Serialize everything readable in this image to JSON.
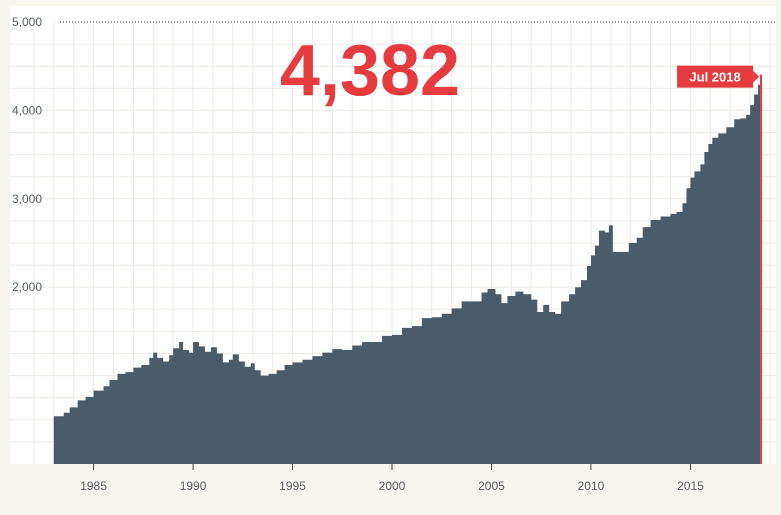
{
  "headline_value": "4,382",
  "colors": {
    "area": "#4a5c69",
    "accent": "#e63b3f",
    "grid": "#ecebe6",
    "plot_background": "#ffffff",
    "page_background": "#f7f5f0",
    "tick_text": "#5a5f63"
  },
  "chart_data": {
    "type": "area",
    "step": true,
    "title": "",
    "xlabel": "",
    "ylabel": "",
    "xlim": [
      1980.8,
      2019.3
    ],
    "ylim": [
      0,
      5000
    ],
    "grid": true,
    "y_ticks": [
      {
        "value": 2000,
        "label": "2,000"
      },
      {
        "value": 3000,
        "label": "3,000"
      },
      {
        "value": 4000,
        "label": "4,000"
      },
      {
        "value": 5000,
        "label": "5,000"
      }
    ],
    "x_ticks": [
      {
        "value": 1985,
        "label": "1985"
      },
      {
        "value": 1990,
        "label": "1990"
      },
      {
        "value": 1995,
        "label": "1995"
      },
      {
        "value": 2000,
        "label": "2000"
      },
      {
        "value": 2005,
        "label": "2005"
      },
      {
        "value": 2010,
        "label": "2010"
      },
      {
        "value": 2015,
        "label": "2015"
      }
    ],
    "annotation": {
      "label": "Jul 2018",
      "x": 2018.5,
      "y": 4382
    },
    "series": [
      {
        "points": [
          [
            1983.0,
            540
          ],
          [
            1983.5,
            580
          ],
          [
            1983.8,
            640
          ],
          [
            1984.2,
            720
          ],
          [
            1984.6,
            760
          ],
          [
            1985.0,
            830
          ],
          [
            1985.5,
            880
          ],
          [
            1985.8,
            950
          ],
          [
            1986.2,
            1020
          ],
          [
            1986.6,
            1040
          ],
          [
            1987.0,
            1090
          ],
          [
            1987.4,
            1120
          ],
          [
            1987.8,
            1200
          ],
          [
            1988.0,
            1260
          ],
          [
            1988.2,
            1200
          ],
          [
            1988.5,
            1160
          ],
          [
            1988.8,
            1230
          ],
          [
            1989.0,
            1310
          ],
          [
            1989.3,
            1380
          ],
          [
            1989.5,
            1290
          ],
          [
            1989.8,
            1260
          ],
          [
            1990.0,
            1380
          ],
          [
            1990.3,
            1330
          ],
          [
            1990.6,
            1270
          ],
          [
            1990.9,
            1320
          ],
          [
            1991.2,
            1250
          ],
          [
            1991.5,
            1150
          ],
          [
            1991.8,
            1180
          ],
          [
            1992.0,
            1240
          ],
          [
            1992.3,
            1160
          ],
          [
            1992.6,
            1100
          ],
          [
            1992.9,
            1140
          ],
          [
            1993.1,
            1060
          ],
          [
            1993.4,
            1000
          ],
          [
            1993.8,
            1020
          ],
          [
            1994.2,
            1060
          ],
          [
            1994.6,
            1120
          ],
          [
            1995.0,
            1150
          ],
          [
            1995.5,
            1180
          ],
          [
            1996.0,
            1220
          ],
          [
            1996.5,
            1260
          ],
          [
            1997.0,
            1300
          ],
          [
            1997.5,
            1290
          ],
          [
            1998.0,
            1340
          ],
          [
            1998.5,
            1380
          ],
          [
            1999.0,
            1380
          ],
          [
            1999.5,
            1450
          ],
          [
            2000.0,
            1460
          ],
          [
            2000.5,
            1540
          ],
          [
            2001.0,
            1560
          ],
          [
            2001.5,
            1650
          ],
          [
            2002.0,
            1660
          ],
          [
            2002.5,
            1700
          ],
          [
            2003.0,
            1760
          ],
          [
            2003.5,
            1840
          ],
          [
            2004.0,
            1840
          ],
          [
            2004.5,
            1940
          ],
          [
            2004.8,
            1980
          ],
          [
            2005.2,
            1920
          ],
          [
            2005.5,
            1820
          ],
          [
            2005.8,
            1900
          ],
          [
            2006.2,
            1950
          ],
          [
            2006.6,
            1920
          ],
          [
            2007.0,
            1860
          ],
          [
            2007.3,
            1720
          ],
          [
            2007.6,
            1800
          ],
          [
            2007.9,
            1720
          ],
          [
            2008.2,
            1700
          ],
          [
            2008.5,
            1840
          ],
          [
            2008.9,
            1920
          ],
          [
            2009.2,
            2000
          ],
          [
            2009.5,
            2080
          ],
          [
            2009.8,
            2240
          ],
          [
            2010.0,
            2360
          ],
          [
            2010.2,
            2470
          ],
          [
            2010.4,
            2640
          ],
          [
            2010.7,
            2620
          ],
          [
            2010.9,
            2700
          ],
          [
            2011.1,
            2400
          ],
          [
            2011.5,
            2400
          ],
          [
            2011.9,
            2500
          ],
          [
            2012.3,
            2560
          ],
          [
            2012.6,
            2680
          ],
          [
            2013.0,
            2760
          ],
          [
            2013.5,
            2800
          ],
          [
            2014.0,
            2830
          ],
          [
            2014.3,
            2850
          ],
          [
            2014.6,
            2950
          ],
          [
            2014.8,
            3120
          ],
          [
            2015.0,
            3240
          ],
          [
            2015.2,
            3310
          ],
          [
            2015.5,
            3390
          ],
          [
            2015.7,
            3530
          ],
          [
            2015.9,
            3620
          ],
          [
            2016.1,
            3690
          ],
          [
            2016.4,
            3740
          ],
          [
            2016.8,
            3810
          ],
          [
            2017.2,
            3900
          ],
          [
            2017.5,
            3910
          ],
          [
            2017.8,
            3950
          ],
          [
            2018.0,
            4060
          ],
          [
            2018.2,
            4180
          ],
          [
            2018.4,
            4290
          ],
          [
            2018.55,
            4382
          ]
        ]
      }
    ]
  }
}
